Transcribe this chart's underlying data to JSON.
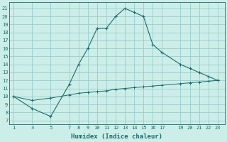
{
  "xlabel": "Humidex (Indice chaleur)",
  "bg_color": "#cceee8",
  "grid_color": "#99cccc",
  "line_color": "#1a6b6b",
  "xticks": [
    1,
    3,
    5,
    7,
    8,
    9,
    10,
    11,
    12,
    13,
    14,
    15,
    16,
    17,
    19,
    20,
    21,
    22,
    23
  ],
  "yticks": [
    7,
    8,
    9,
    10,
    11,
    12,
    13,
    14,
    15,
    16,
    17,
    18,
    19,
    20,
    21
  ],
  "xlim": [
    0.5,
    23.8
  ],
  "ylim": [
    6.5,
    21.8
  ],
  "main_x": [
    1,
    3,
    5,
    7,
    8,
    9,
    10,
    11,
    12,
    13,
    14,
    15,
    16,
    17,
    19,
    20,
    21,
    22,
    23
  ],
  "main_y": [
    10,
    8.5,
    7.5,
    11.5,
    14,
    16,
    18.5,
    18.5,
    20,
    21,
    20.5,
    20,
    16.5,
    15.5,
    14,
    13.5,
    13,
    12.5,
    12
  ],
  "flat_x": [
    1,
    3,
    5,
    7,
    8,
    9,
    10,
    11,
    12,
    13,
    14,
    15,
    16,
    17,
    19,
    20,
    21,
    22,
    23
  ],
  "flat_y": [
    10,
    9.5,
    9.8,
    10.2,
    10.4,
    10.5,
    10.6,
    10.7,
    10.9,
    11.0,
    11.1,
    11.2,
    11.3,
    11.4,
    11.6,
    11.7,
    11.8,
    11.9,
    12.0
  ],
  "tick_fontsize": 5.0,
  "xlabel_fontsize": 6.5
}
